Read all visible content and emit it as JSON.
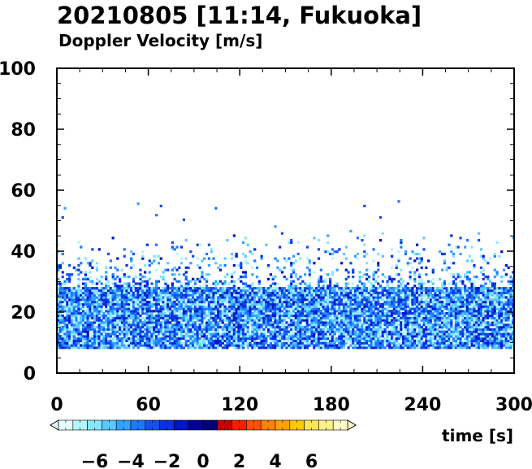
{
  "chart_data": {
    "type": "heatmap",
    "title": "20210805 [11:14, Fukuoka]",
    "subtitle": "Doppler Velocity [m/s]",
    "xlabel": "time [s]",
    "ylabel": "",
    "xlim": [
      0,
      300
    ],
    "ylim": [
      0,
      100
    ],
    "x_ticks": [
      "0",
      "60",
      "120",
      "180",
      "240",
      "300"
    ],
    "y_ticks": [
      "0",
      "20",
      "40",
      "60",
      "80",
      "100"
    ],
    "colorbar": {
      "range": [
        -8,
        8
      ],
      "tick_labels": [
        "−6",
        "−4",
        "−2",
        "0",
        "2",
        "4",
        "6"
      ],
      "tick_values": [
        -6,
        -4,
        -2,
        0,
        2,
        4,
        6
      ],
      "colors": [
        "#e6ffff",
        "#b4f5ff",
        "#87e6ff",
        "#5ac8ff",
        "#32a0ff",
        "#1e78ff",
        "#1450f0",
        "#0a32dc",
        "#0014c8",
        "#0000a0",
        "#000078",
        "#c80000",
        "#ff1e00",
        "#ff5000",
        "#ff8200",
        "#ffa000",
        "#ffc800",
        "#ffe650",
        "#fff08c",
        "#fffac8"
      ]
    },
    "series": [
      {
        "velocity_range": [
          -7,
          -1
        ],
        "height_range": [
          8,
          57
        ],
        "dense_height_range": [
          8,
          28
        ],
        "sparse_max_height": 45
      }
    ]
  }
}
